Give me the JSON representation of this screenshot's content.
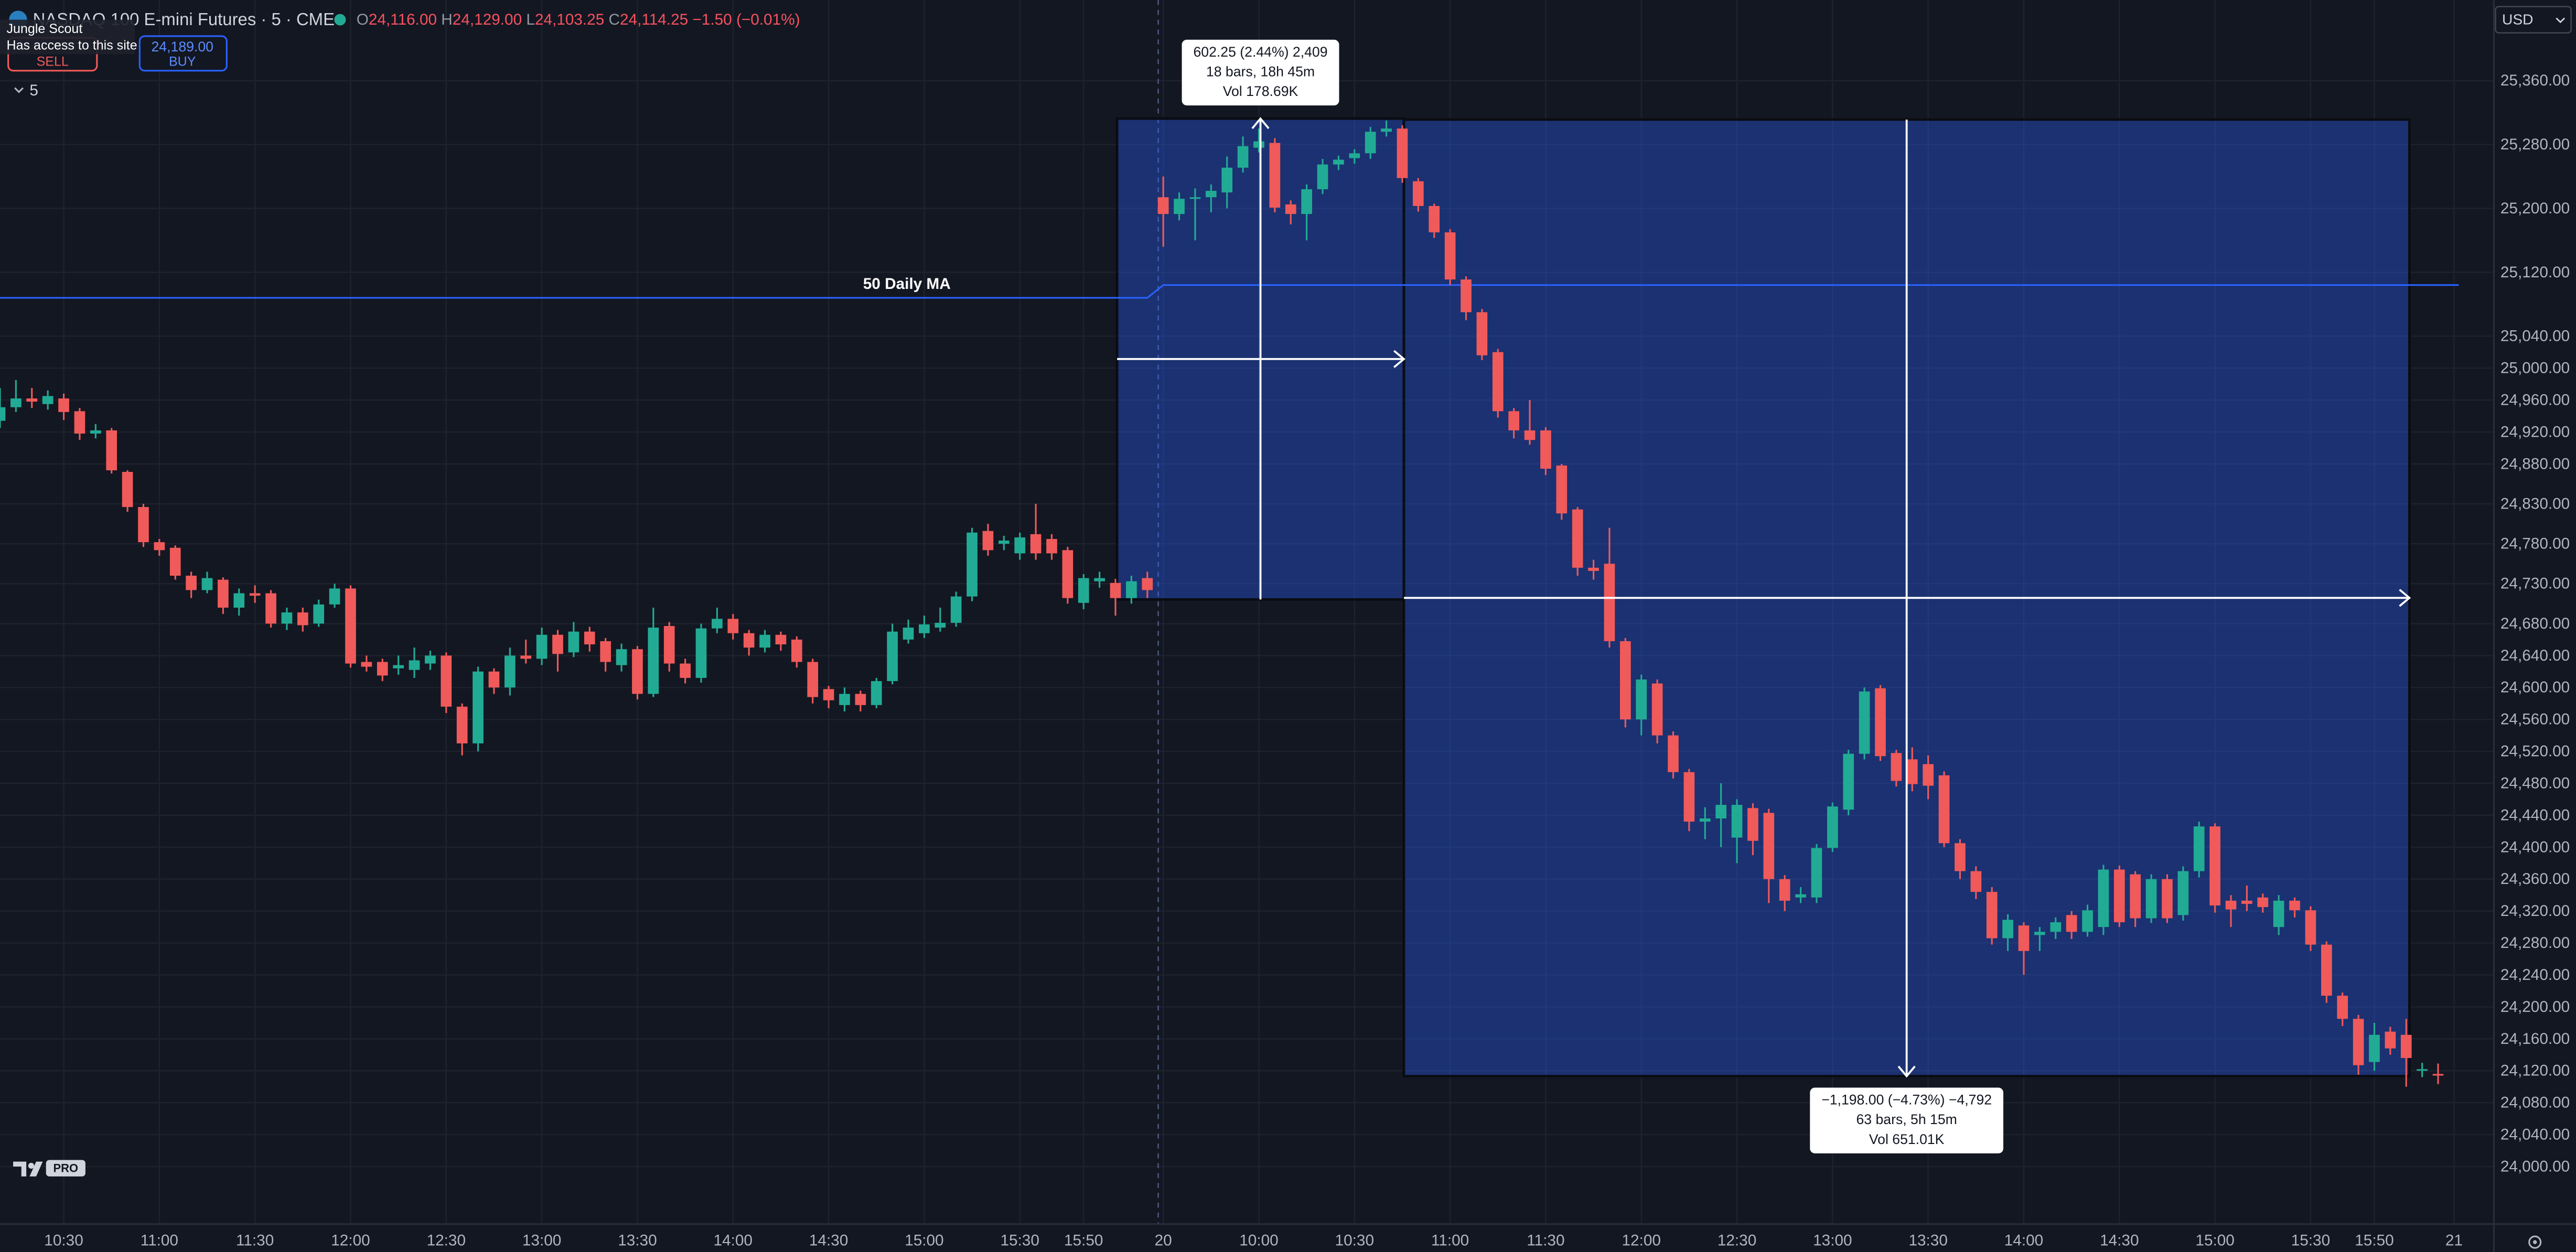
{
  "header": {
    "symbol": "NASDAQ 100 E-mini Futures · 5 · CME",
    "ohlc_keys": [
      "O",
      "H",
      "L",
      "C"
    ],
    "ohlc_values": [
      "24,116.00",
      "24,129.00",
      "24,103.25",
      "24,114.25"
    ],
    "change": "−1.50 (−0.01%)"
  },
  "tooltip": {
    "title": "Jungle Scout",
    "text": "Has access to this site"
  },
  "trade": {
    "sell": "SELL",
    "buy_price": "24,189.00",
    "buy": "BUY"
  },
  "interval": "5",
  "currency": "USD",
  "logo": "PRO",
  "chart_data": {
    "type": "candlestick",
    "up_color": "#22ab94",
    "down_color": "#f05a5a",
    "grid": true,
    "xlim": [
      0,
      156.5
    ],
    "ylim": [
      23928,
      25461
    ],
    "xticks": [
      {
        "value": 4,
        "label": "10:30"
      },
      {
        "value": 10,
        "label": "11:00"
      },
      {
        "value": 16,
        "label": "11:30"
      },
      {
        "value": 22,
        "label": "12:00"
      },
      {
        "value": 28,
        "label": "12:30"
      },
      {
        "value": 34,
        "label": "13:00"
      },
      {
        "value": 40,
        "label": "13:30"
      },
      {
        "value": 46,
        "label": "14:00"
      },
      {
        "value": 52,
        "label": "14:30"
      },
      {
        "value": 58,
        "label": "15:00"
      },
      {
        "value": 64,
        "label": "15:30"
      },
      {
        "value": 68,
        "label": "15:50"
      },
      {
        "value": 73,
        "label": "20"
      },
      {
        "value": 79,
        "label": "10:00"
      },
      {
        "value": 85,
        "label": "10:30"
      },
      {
        "value": 91,
        "label": "11:00"
      },
      {
        "value": 97,
        "label": "11:30"
      },
      {
        "value": 103,
        "label": "12:00"
      },
      {
        "value": 109,
        "label": "12:30"
      },
      {
        "value": 115,
        "label": "13:00"
      },
      {
        "value": 121,
        "label": "13:30"
      },
      {
        "value": 127,
        "label": "14:00"
      },
      {
        "value": 133,
        "label": "14:30"
      },
      {
        "value": 139,
        "label": "15:00"
      },
      {
        "value": 145,
        "label": "15:30"
      },
      {
        "value": 149,
        "label": "15:50"
      },
      {
        "value": 154,
        "label": "21"
      }
    ],
    "yticks": [
      {
        "value": 25360,
        "label": "25,360.00"
      },
      {
        "value": 25280,
        "label": "25,280.00"
      },
      {
        "value": 25200,
        "label": "25,200.00"
      },
      {
        "value": 25120,
        "label": "25,120.00"
      },
      {
        "value": 25040,
        "label": "25,040.00"
      },
      {
        "value": 25000,
        "label": "25,000.00"
      },
      {
        "value": 24960,
        "label": "24,960.00"
      },
      {
        "value": 24920,
        "label": "24,920.00"
      },
      {
        "value": 24880,
        "label": "24,880.00"
      },
      {
        "value": 24830,
        "label": "24,830.00"
      },
      {
        "value": 24780,
        "label": "24,780.00"
      },
      {
        "value": 24730,
        "label": "24,730.00"
      },
      {
        "value": 24680,
        "label": "24,680.00"
      },
      {
        "value": 24640,
        "label": "24,640.00"
      },
      {
        "value": 24600,
        "label": "24,600.00"
      },
      {
        "value": 24560,
        "label": "24,560.00"
      },
      {
        "value": 24520,
        "label": "24,520.00"
      },
      {
        "value": 24480,
        "label": "24,480.00"
      },
      {
        "value": 24440,
        "label": "24,440.00"
      },
      {
        "value": 24400,
        "label": "24,400.00"
      },
      {
        "value": 24360,
        "label": "24,360.00"
      },
      {
        "value": 24320,
        "label": "24,320.00"
      },
      {
        "value": 24280,
        "label": "24,280.00"
      },
      {
        "value": 24240,
        "label": "24,240.00"
      },
      {
        "value": 24200,
        "label": "24,200.00"
      },
      {
        "value": 24160,
        "label": "24,160.00"
      },
      {
        "value": 24120,
        "label": "24,120.00"
      },
      {
        "value": 24080,
        "label": "24,080.00"
      },
      {
        "value": 24040,
        "label": "24,040.00"
      },
      {
        "value": 24000,
        "label": "24,000.00"
      }
    ],
    "ohlc": [
      [
        24934,
        24975,
        24925,
        24951
      ],
      [
        24951,
        24985,
        24945,
        24962
      ],
      [
        24962,
        24975,
        24950,
        24958
      ],
      [
        24955,
        24972,
        24948,
        24965
      ],
      [
        24962,
        24968,
        24935,
        24945
      ],
      [
        24946,
        24950,
        24910,
        24918
      ],
      [
        24918,
        24930,
        24912,
        24922
      ],
      [
        24922,
        24925,
        24868,
        24872
      ],
      [
        24870,
        24872,
        24820,
        24826
      ],
      [
        24826,
        24830,
        24776,
        24782
      ],
      [
        24782,
        24786,
        24765,
        24772
      ],
      [
        24775,
        24778,
        24735,
        24740
      ],
      [
        24740,
        24745,
        24712,
        24722
      ],
      [
        24722,
        24745,
        24718,
        24737
      ],
      [
        24735,
        24738,
        24692,
        24700
      ],
      [
        24700,
        24724,
        24690,
        24718
      ],
      [
        24718,
        24728,
        24706,
        24715
      ],
      [
        24718,
        24722,
        24675,
        24680
      ],
      [
        24680,
        24700,
        24672,
        24694
      ],
      [
        24694,
        24700,
        24670,
        24678
      ],
      [
        24680,
        24710,
        24676,
        24704
      ],
      [
        24704,
        24730,
        24700,
        24724
      ],
      [
        24724,
        24728,
        24625,
        24630
      ],
      [
        24632,
        24640,
        24620,
        24626
      ],
      [
        24632,
        24636,
        24608,
        24615
      ],
      [
        24624,
        24640,
        24616,
        24628
      ],
      [
        24622,
        24650,
        24612,
        24634
      ],
      [
        24630,
        24646,
        24622,
        24640
      ],
      [
        24640,
        24644,
        24568,
        24576
      ],
      [
        24576,
        24580,
        24515,
        24530
      ],
      [
        24530,
        24626,
        24520,
        24620
      ],
      [
        24620,
        24624,
        24592,
        24600
      ],
      [
        24600,
        24650,
        24590,
        24640
      ],
      [
        24640,
        24660,
        24630,
        24636
      ],
      [
        24636,
        24675,
        24628,
        24666
      ],
      [
        24666,
        24672,
        24620,
        24642
      ],
      [
        24644,
        24682,
        24638,
        24670
      ],
      [
        24670,
        24676,
        24645,
        24654
      ],
      [
        24658,
        24662,
        24620,
        24632
      ],
      [
        24628,
        24655,
        24620,
        24648
      ],
      [
        24648,
        24652,
        24585,
        24592
      ],
      [
        24592,
        24700,
        24588,
        24675
      ],
      [
        24677,
        24682,
        24620,
        24630
      ],
      [
        24630,
        24636,
        24605,
        24612
      ],
      [
        24612,
        24680,
        24606,
        24674
      ],
      [
        24674,
        24700,
        24668,
        24686
      ],
      [
        24686,
        24692,
        24660,
        24668
      ],
      [
        24668,
        24672,
        24640,
        24650
      ],
      [
        24650,
        24672,
        24644,
        24666
      ],
      [
        24666,
        24670,
        24646,
        24654
      ],
      [
        24660,
        24664,
        24625,
        24632
      ],
      [
        24632,
        24636,
        24580,
        24588
      ],
      [
        24598,
        24602,
        24574,
        24584
      ],
      [
        24578,
        24600,
        24570,
        24592
      ],
      [
        24592,
        24596,
        24570,
        24578
      ],
      [
        24578,
        24612,
        24574,
        24608
      ],
      [
        24608,
        24680,
        24604,
        24670
      ],
      [
        24660,
        24685,
        24655,
        24675
      ],
      [
        24668,
        24690,
        24662,
        24679
      ],
      [
        24675,
        24700,
        24670,
        24681
      ],
      [
        24681,
        24720,
        24676,
        24714
      ],
      [
        24714,
        24800,
        24708,
        24794
      ],
      [
        24796,
        24805,
        24765,
        24772
      ],
      [
        24780,
        24790,
        24772,
        24784
      ],
      [
        24768,
        24794,
        24760,
        24788
      ],
      [
        24792,
        24830,
        24760,
        24768
      ],
      [
        24786,
        24792,
        24760,
        24768
      ],
      [
        24772,
        24776,
        24705,
        24712
      ],
      [
        24706,
        24742,
        24698,
        24737
      ],
      [
        24733,
        24745,
        24725,
        24737
      ],
      [
        24731,
        24736,
        24690,
        24712
      ],
      [
        24712,
        24740,
        24705,
        24733
      ],
      [
        24737,
        24745,
        24712,
        24722
      ],
      [
        25214,
        25240,
        25152,
        25193
      ],
      [
        25193,
        25220,
        25185,
        25212
      ],
      [
        25212,
        25225,
        25160,
        25214
      ],
      [
        25214,
        25230,
        25195,
        25222
      ],
      [
        25220,
        25265,
        25200,
        25251
      ],
      [
        25251,
        25290,
        25245,
        25278
      ],
      [
        25276,
        25300,
        25270,
        25284
      ],
      [
        25282,
        25288,
        25195,
        25201
      ],
      [
        25205,
        25210,
        25180,
        25193
      ],
      [
        25193,
        25230,
        25160,
        25224
      ],
      [
        25224,
        25262,
        25218,
        25255
      ],
      [
        25255,
        25266,
        25248,
        25261
      ],
      [
        25263,
        25274,
        25256,
        25269
      ],
      [
        25269,
        25302,
        25262,
        25296
      ],
      [
        25296,
        25310,
        25290,
        25300
      ],
      [
        25300,
        25304,
        25232,
        25238
      ],
      [
        25234,
        25238,
        25196,
        25203
      ],
      [
        25203,
        25206,
        25163,
        25170
      ],
      [
        25170,
        25174,
        25104,
        25111
      ],
      [
        25111,
        25115,
        25060,
        25070
      ],
      [
        25070,
        25074,
        25010,
        25016
      ],
      [
        25020,
        25024,
        24938,
        24946
      ],
      [
        24946,
        24950,
        24912,
        24922
      ],
      [
        24922,
        24960,
        24904,
        24910
      ],
      [
        24922,
        24926,
        24866,
        24874
      ],
      [
        24878,
        24880,
        24810,
        24818
      ],
      [
        24823,
        24826,
        24740,
        24750
      ],
      [
        24750,
        24760,
        24735,
        24746
      ],
      [
        24755,
        24800,
        24650,
        24658
      ],
      [
        24658,
        24662,
        24550,
        24560
      ],
      [
        24560,
        24616,
        24540,
        24610
      ],
      [
        24605,
        24610,
        24530,
        24540
      ],
      [
        24540,
        24545,
        24486,
        24494
      ],
      [
        24494,
        24498,
        24420,
        24432
      ],
      [
        24432,
        24450,
        24410,
        24436
      ],
      [
        24436,
        24480,
        24400,
        24453
      ],
      [
        24412,
        24460,
        24380,
        24453
      ],
      [
        24449,
        24455,
        24390,
        24408
      ],
      [
        24443,
        24448,
        24330,
        24360
      ],
      [
        24360,
        24365,
        24320,
        24333
      ],
      [
        24337,
        24350,
        24330,
        24341
      ],
      [
        24337,
        24404,
        24330,
        24399
      ],
      [
        24399,
        24456,
        24394,
        24451
      ],
      [
        24447,
        24522,
        24440,
        24517
      ],
      [
        24517,
        24600,
        24510,
        24595
      ],
      [
        24599,
        24603,
        24508,
        24514
      ],
      [
        24518,
        24522,
        24476,
        24483
      ],
      [
        24510,
        24525,
        24470,
        24479
      ],
      [
        24504,
        24515,
        24460,
        24477
      ],
      [
        24490,
        24495,
        24400,
        24405
      ],
      [
        24405,
        24410,
        24360,
        24370
      ],
      [
        24370,
        24376,
        24335,
        24344
      ],
      [
        24344,
        24350,
        24278,
        24286
      ],
      [
        24286,
        24316,
        24270,
        24309
      ],
      [
        24302,
        24306,
        24240,
        24270
      ],
      [
        24290,
        24300,
        24270,
        24294
      ],
      [
        24294,
        24312,
        24285,
        24306
      ],
      [
        24315,
        24320,
        24285,
        24294
      ],
      [
        24294,
        24328,
        24288,
        24321
      ],
      [
        24300,
        24378,
        24290,
        24372
      ],
      [
        24372,
        24377,
        24300,
        24306
      ],
      [
        24366,
        24370,
        24300,
        24311
      ],
      [
        24311,
        24366,
        24305,
        24360
      ],
      [
        24360,
        24366,
        24305,
        24311
      ],
      [
        24315,
        24376,
        24308,
        24370
      ],
      [
        24370,
        24432,
        24362,
        24426
      ],
      [
        24426,
        24430,
        24318,
        24327
      ],
      [
        24333,
        24340,
        24300,
        24322
      ],
      [
        24333,
        24352,
        24320,
        24329
      ],
      [
        24337,
        24342,
        24318,
        24325
      ],
      [
        24300,
        24340,
        24290,
        24333
      ],
      [
        24333,
        24337,
        24312,
        24321
      ],
      [
        24321,
        24326,
        24270,
        24278
      ],
      [
        24278,
        24282,
        24205,
        24214
      ],
      [
        24214,
        24218,
        24176,
        24185
      ],
      [
        24185,
        24190,
        24115,
        24127
      ],
      [
        24131,
        24180,
        24120,
        24165
      ],
      [
        24169,
        24175,
        24140,
        24148
      ],
      [
        24165,
        24185,
        24100,
        24136
      ],
      [
        24120,
        24130,
        24112,
        24122
      ],
      [
        24116,
        24129,
        24103.25,
        24114.25
      ]
    ],
    "ma": {
      "name": "50 Daily MA",
      "color": "#2962ff",
      "x": [
        0,
        72,
        73,
        154.3
      ],
      "values": [
        25088,
        25088,
        25104,
        25104
      ]
    },
    "measures": [
      {
        "color": "#2962ff",
        "x": [
          70.1,
          88.1
        ],
        "y": [
          24710.25,
          25312.5
        ],
        "labels": [
          "602.25 (2.44%) 2,409",
          "18 bars, 18h 45m",
          "Vol 178.69K"
        ]
      },
      {
        "color": "#2962ff",
        "x": [
          88.1,
          151.2
        ],
        "y": [
          25311.25,
          24113.25
        ],
        "labels": [
          "−1,198.00 (−4.73%) −4,792",
          "63 bars, 5h 15m",
          "Vol 651.01K"
        ]
      }
    ]
  }
}
